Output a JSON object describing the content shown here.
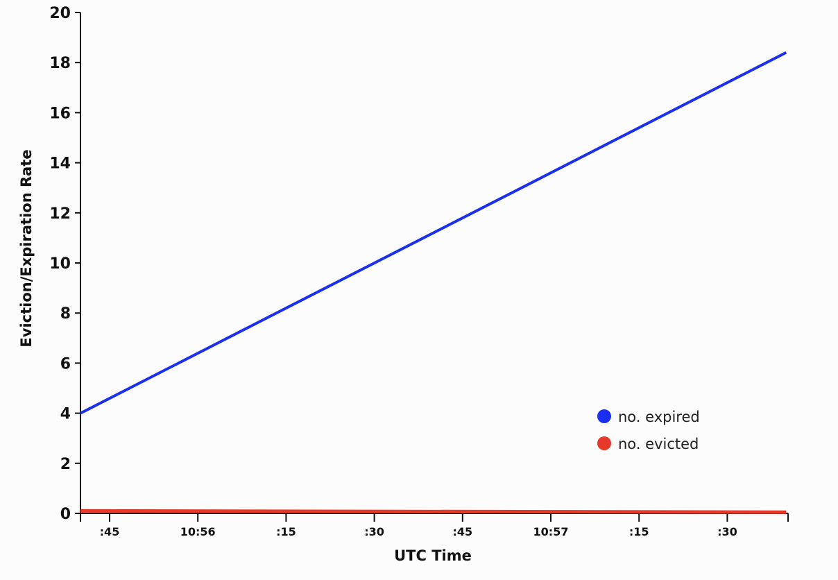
{
  "chart_data": {
    "type": "line",
    "xlabel": "UTC Time",
    "ylabel": "Eviction/Expiration Rate",
    "ylim": [
      0,
      20
    ],
    "yticks": [
      "0",
      "2",
      "4",
      "6",
      "8",
      "10",
      "12",
      "14",
      "16",
      "18",
      "20"
    ],
    "xticks": [
      ":45",
      "10:56",
      ":15",
      ":30",
      ":45",
      "10:57",
      ":15",
      ":30"
    ],
    "series": [
      {
        "name": "no. expired",
        "color": "#1a2ff0",
        "x": [
          "10:55:40",
          "10:57:40"
        ],
        "values": [
          4.0,
          18.4
        ]
      },
      {
        "name": "no. evicted",
        "color": "#e8382a",
        "x": [
          "10:55:40",
          "10:57:40"
        ],
        "values": [
          0.1,
          0.05
        ]
      }
    ],
    "legend_position": "lower-right",
    "grid": false
  }
}
